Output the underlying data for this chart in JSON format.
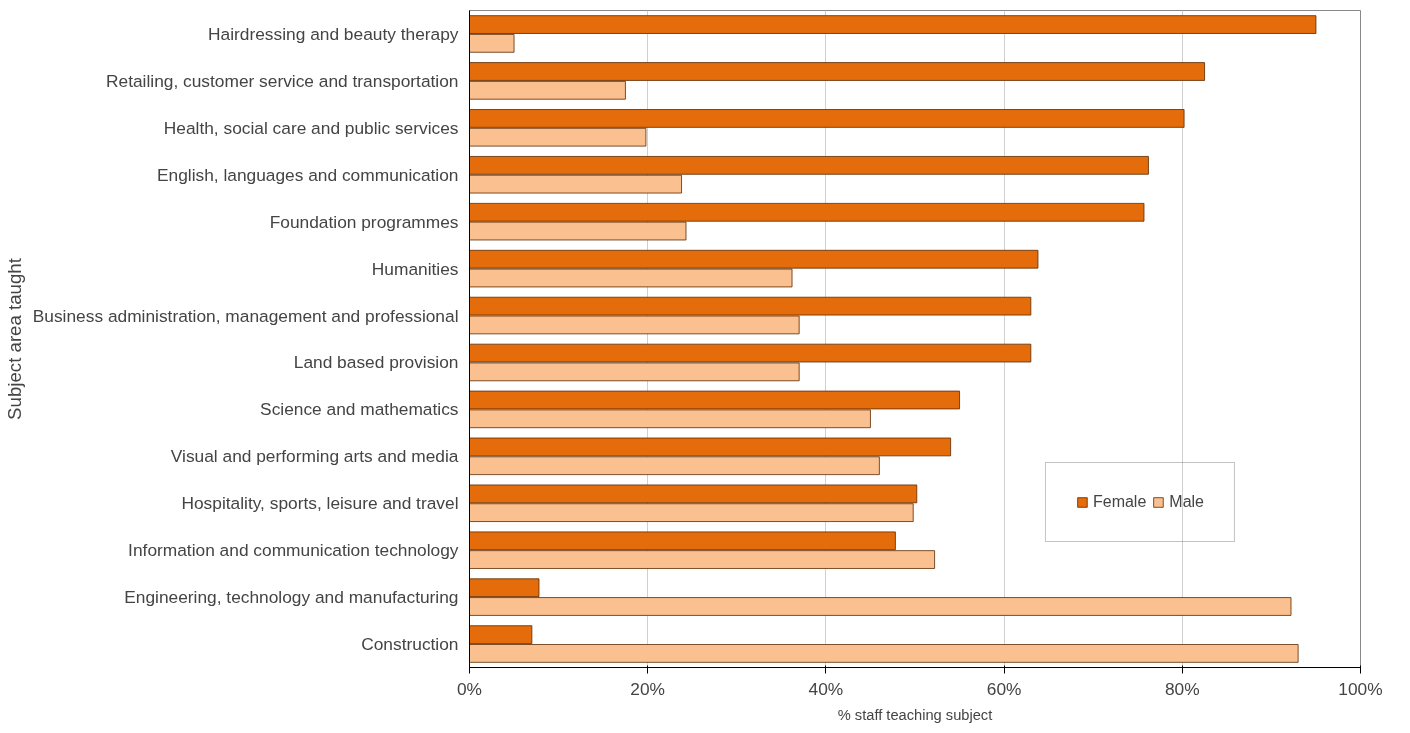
{
  "chart_data": {
    "type": "bar",
    "orientation": "horizontal",
    "xlabel": "% staff teaching subject",
    "ylabel": "Subject area taught",
    "categories": [
      "Hairdressing and beauty therapy",
      "Retailing, customer service and transportation",
      "Health, social care and public services",
      "English, languages and communication",
      "Foundation programmes",
      "Humanities",
      "Business administration, management and professional",
      "Land based provision",
      "Science and mathematics",
      "Visual and performing arts and media",
      "Hospitality, sports, leisure and travel",
      "Information and communication technology",
      "Engineering, technology and manufacturing",
      "Construction"
    ],
    "series": [
      {
        "name": "Female",
        "color": "#e46c0a",
        "values": [
          95,
          82.5,
          80.2,
          76.2,
          75.7,
          63.8,
          63,
          63,
          55,
          54,
          50.2,
          47.8,
          7.8,
          7
        ]
      },
      {
        "name": "Male",
        "color": "#fac090",
        "values": [
          5,
          17.5,
          19.8,
          23.8,
          24.3,
          36.2,
          37,
          37,
          45,
          46,
          49.8,
          52.2,
          92.2,
          93
        ]
      }
    ],
    "xlim": [
      0,
      100
    ],
    "xticks": [
      {
        "value": 0,
        "label": "0%"
      },
      {
        "value": 20,
        "label": "20%"
      },
      {
        "value": 40,
        "label": "40%"
      },
      {
        "value": 60,
        "label": "60%"
      },
      {
        "value": 80,
        "label": "80%"
      },
      {
        "value": 100,
        "label": "100%"
      }
    ],
    "grid": "x",
    "legend": "right"
  }
}
